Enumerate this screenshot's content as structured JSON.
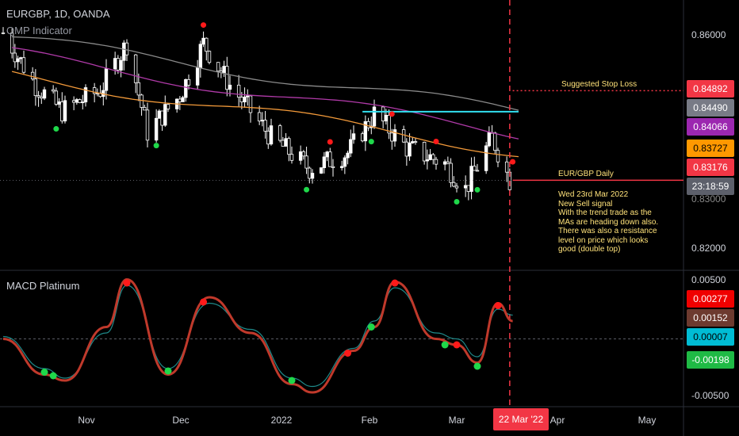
{
  "header": {
    "symbol_line": "EURGBP, 1D, OANDA",
    "indicator": "QMP Indicator",
    "macd_title": "MACD Platinum"
  },
  "annotations": {
    "stop_loss": "Suggested Stop Loss",
    "pair_label": "EUR/GBP Daily",
    "note_lines": [
      "Wed 23rd Mar 2022",
      "New Sell signal",
      "With the trend trade as the",
      "MAs are heading down also.",
      "There was also a resistance",
      "level on price which looks",
      "good (double top)"
    ]
  },
  "price_axis": {
    "ticks": [
      "0.86000",
      "0.82000"
    ],
    "partial_tick": "0.83000"
  },
  "price_tags": [
    {
      "label": "0.84892",
      "color": "#f23645",
      "text_color": "#ffffff"
    },
    {
      "label": "0.84490",
      "color": "#787b86",
      "text_color": "#ffffff"
    },
    {
      "label": "0.84066",
      "color": "#9c27b0",
      "text_color": "#ffffff"
    },
    {
      "label": "0.83727",
      "color": "#ff9800",
      "text_color": "#000000"
    },
    {
      "label": "0.83176",
      "color": "#f23645",
      "text_color": "#ffffff"
    },
    {
      "label": "23:18:59",
      "color": "#5d606b",
      "text_color": "#ffffff"
    }
  ],
  "macd_axis": {
    "ticks": [
      "0.00500",
      "-0.00500"
    ]
  },
  "macd_tags": [
    {
      "label": "0.00277",
      "color": "#f00000",
      "text_color": "#ffffff"
    },
    {
      "label": "0.00152",
      "color": "#6d3a2f",
      "text_color": "#ffffff"
    },
    {
      "label": "0.00007",
      "color": "#00bcd4",
      "text_color": "#000000"
    },
    {
      "label": "-0.00198",
      "color": "#1fba45",
      "text_color": "#ffffff"
    }
  ],
  "x_axis": {
    "labels": [
      "Nov",
      "Dec",
      "2022",
      "Feb",
      "Mar",
      "Apr",
      "May"
    ],
    "current_date": "22 Mar '22"
  },
  "colors": {
    "background": "#000000",
    "up_candle": "#ffffff",
    "down_candle": "#ffffff",
    "ma_slow": "#8a8a8a",
    "ma_mid": "#b03aa8",
    "ma_fast": "#f39a3a",
    "resistance": "#32e0f0",
    "stop_loss": "#f23645",
    "vertical_marker": "#f23645",
    "signal_buy": "#1fd84a",
    "signal_sell": "#ff1a1a",
    "macd_line": "#c0392b",
    "signal_line": "#1f8a8a"
  },
  "chart_data": [
    {
      "type": "candlestick",
      "title": "EURGBP, 1D, OANDA",
      "ylim": [
        0.818,
        0.8625
      ],
      "approx_close_path": [
        {
          "date": "2021-10-01",
          "close": 0.86
        },
        {
          "date": "2021-10-12",
          "close": 0.85
        },
        {
          "date": "2021-10-21",
          "close": 0.845
        },
        {
          "date": "2021-11-03",
          "close": 0.849
        },
        {
          "date": "2021-11-12",
          "close": 0.858
        },
        {
          "date": "2021-11-19",
          "close": 0.841
        },
        {
          "date": "2021-11-30",
          "close": 0.848
        },
        {
          "date": "2021-12-08",
          "close": 0.858
        },
        {
          "date": "2021-12-17",
          "close": 0.85
        },
        {
          "date": "2021-12-31",
          "close": 0.84
        },
        {
          "date": "2022-01-13",
          "close": 0.834
        },
        {
          "date": "2022-01-26",
          "close": 0.837
        },
        {
          "date": "2022-02-04",
          "close": 0.8445
        },
        {
          "date": "2022-02-15",
          "close": 0.838
        },
        {
          "date": "2022-02-28",
          "close": 0.835
        },
        {
          "date": "2022-03-07",
          "close": 0.83
        },
        {
          "date": "2022-03-16",
          "close": 0.84
        },
        {
          "date": "2022-03-22",
          "close": 0.8318
        }
      ],
      "moving_averages": [
        {
          "name": "slow",
          "last": 0.8449
        },
        {
          "name": "mid",
          "last": 0.84066
        },
        {
          "name": "fast",
          "last": 0.83727
        }
      ],
      "resistance_level": 0.8449,
      "stop_loss_level": 0.84892,
      "last_price": 0.83176,
      "buy_signals": [
        "2021-10-19",
        "2021-11-22",
        "2022-01-12",
        "2022-02-03",
        "2022-03-04",
        "2022-03-11"
      ],
      "sell_signals": [
        "2021-12-08",
        "2022-01-20",
        "2022-02-10",
        "2022-02-25",
        "2022-03-23"
      ]
    },
    {
      "type": "line",
      "title": "MACD Platinum",
      "ylim": [
        -0.0055,
        0.0055
      ],
      "x": [
        "2021-10-01",
        "2021-10-15",
        "2021-10-22",
        "2021-11-05",
        "2021-11-12",
        "2021-11-26",
        "2021-12-10",
        "2021-12-24",
        "2022-01-07",
        "2022-01-14",
        "2022-01-28",
        "2022-02-04",
        "2022-02-11",
        "2022-02-25",
        "2022-03-04",
        "2022-03-11",
        "2022-03-18",
        "2022-03-23"
      ],
      "series": [
        {
          "values": [
            0.0,
            -0.003,
            -0.0035,
            0.001,
            0.005,
            -0.003,
            0.0035,
            0.0005,
            -0.0038,
            -0.0045,
            -0.001,
            0.001,
            0.0048,
            0.0,
            -0.0005,
            -0.002,
            0.003,
            0.0015
          ]
        },
        {
          "values": [
            0.0002,
            -0.0025,
            -0.0033,
            0.0005,
            0.0045,
            -0.0025,
            0.003,
            0.0008,
            -0.0033,
            -0.004,
            -0.0008,
            0.0015,
            0.0043,
            0.0005,
            0.0,
            -0.0015,
            0.0025,
            0.002
          ]
        }
      ]
    }
  ]
}
